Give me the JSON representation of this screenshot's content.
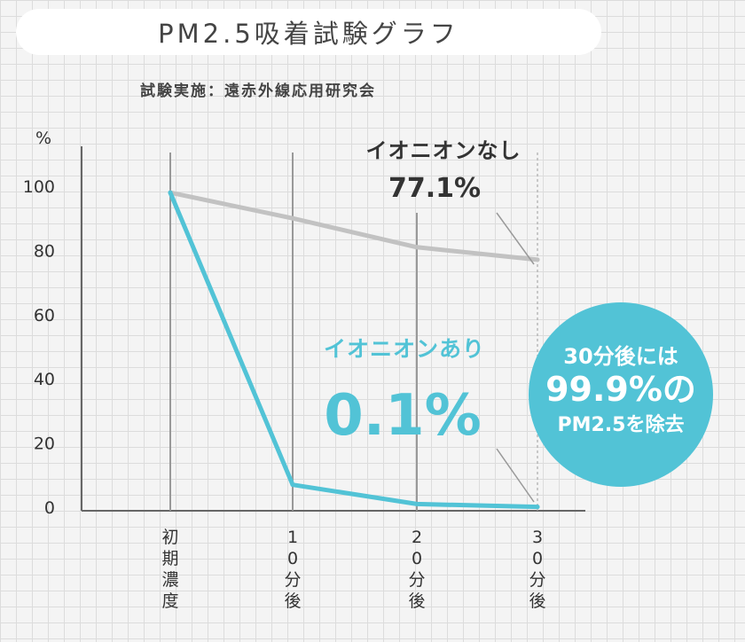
{
  "title": "PM2.5吸着試験グラフ",
  "subtitle": "試験実施：遠赤外線応用研究会",
  "chart_data": {
    "type": "line",
    "title": "PM2.5吸着試験グラフ",
    "subtitle": "試験実施：遠赤外線応用研究会",
    "yunit": "%",
    "ylim": [
      0,
      100
    ],
    "yticks": [
      0,
      20,
      40,
      60,
      80,
      100
    ],
    "categories": [
      "初期濃度",
      "10分後",
      "20分後",
      "30分後"
    ],
    "series": [
      {
        "name": "イオニオンなし",
        "values": [
          98,
          90,
          81,
          77.1
        ],
        "color": "#c2c2c2",
        "final_label": "77.1%"
      },
      {
        "name": "イオニオンあり",
        "values": [
          98,
          7,
          1,
          0.1
        ],
        "color": "#52c3d6",
        "final_label": "0.1%"
      }
    ],
    "grid": true
  },
  "badge": {
    "line1": "30分後には",
    "line2": "99.9%の",
    "line3": "PM2.5を除去",
    "color": "#52c3d6"
  }
}
